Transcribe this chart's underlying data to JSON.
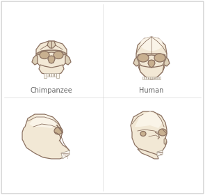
{
  "background_color": "#ffffff",
  "border_color": "#d0d0d0",
  "skull_fill": "#f2e8d5",
  "skull_stroke": "#8a7060",
  "shadow_fill": "#ddd0b8",
  "eye_fill": "#c8b090",
  "teeth_fill": "#f8f4ee",
  "teeth_stroke": "#aaa090",
  "label_chimp": "Chimpanzee",
  "label_human": "Human",
  "label_fontsize": 7.0,
  "label_color": "#666666",
  "highlight_fill": "#faf4e8",
  "dark_line": "#8a7060",
  "lw": 0.9
}
